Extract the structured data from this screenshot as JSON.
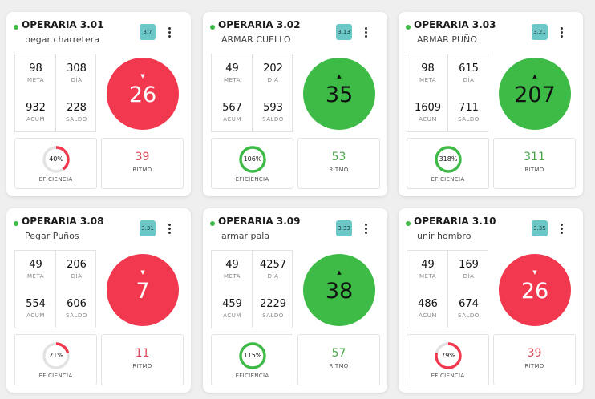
{
  "colors": {
    "ok": "#3dbb46",
    "bad": "#f2384f",
    "ok_text": "#47a447",
    "bad_text": "#d84a5c",
    "badge_bg": "#6cc7c7",
    "ring_track": "#e2e2e2"
  },
  "cards": [
    {
      "title": "OPERARIA 3.01",
      "task": "pegar charretera",
      "badge": "3.7",
      "meta": "98",
      "meta_label": "META",
      "dia": "308",
      "dia_label": "DÍA",
      "acum": "932",
      "acum_label": "ACUM",
      "saldo": "228",
      "saldo_label": "SALDO",
      "value": "26",
      "trend": "down",
      "arrow": "▼",
      "efficiency": "40%",
      "efficiency_fraction": 0.4,
      "efficiency_label": "EFICIENCIA",
      "ritmo": "39",
      "ritmo_label": "RITMO"
    },
    {
      "title": "OPERARIA 3.02",
      "task": "ARMAR CUELLO",
      "badge": "3.13",
      "meta": "49",
      "meta_label": "META",
      "dia": "202",
      "dia_label": "DÍA",
      "acum": "567",
      "acum_label": "ACUM",
      "saldo": "593",
      "saldo_label": "SALDO",
      "value": "35",
      "trend": "up",
      "arrow": "▲",
      "efficiency": "106%",
      "efficiency_fraction": 1.0,
      "efficiency_label": "EFICIENCIA",
      "ritmo": "53",
      "ritmo_label": "RITMO"
    },
    {
      "title": "OPERARIA 3.03",
      "task": "ARMAR PUÑO",
      "badge": "3.21",
      "meta": "98",
      "meta_label": "META",
      "dia": "615",
      "dia_label": "DÍA",
      "acum": "1609",
      "acum_label": "ACUM",
      "saldo": "711",
      "saldo_label": "SALDO",
      "value": "207",
      "trend": "up",
      "arrow": "▲",
      "efficiency": "318%",
      "efficiency_fraction": 1.0,
      "efficiency_label": "EFICIENCIA",
      "ritmo": "311",
      "ritmo_label": "RITMO"
    },
    {
      "title": "OPERARIA 3.08",
      "task": "Pegar Puños",
      "badge": "3.31",
      "meta": "49",
      "meta_label": "META",
      "dia": "206",
      "dia_label": "DÍA",
      "acum": "554",
      "acum_label": "ACUM",
      "saldo": "606",
      "saldo_label": "SALDO",
      "value": "7",
      "trend": "down",
      "arrow": "▼",
      "efficiency": "21%",
      "efficiency_fraction": 0.21,
      "efficiency_label": "EFICIENCIA",
      "ritmo": "11",
      "ritmo_label": "RITMO"
    },
    {
      "title": "OPERARIA 3.09",
      "task": "armar pala",
      "badge": "3.33",
      "meta": "49",
      "meta_label": "META",
      "dia": "4257",
      "dia_label": "DÍA",
      "acum": "459",
      "acum_label": "ACUM",
      "saldo": "2229",
      "saldo_label": "SALDO",
      "value": "38",
      "trend": "up",
      "arrow": "▲",
      "efficiency": "115%",
      "efficiency_fraction": 1.0,
      "efficiency_label": "EFICIENCIA",
      "ritmo": "57",
      "ritmo_label": "RITMO"
    },
    {
      "title": "OPERARIA 3.10",
      "task": "unir hombro",
      "badge": "3.35",
      "meta": "49",
      "meta_label": "META",
      "dia": "169",
      "dia_label": "DÍA",
      "acum": "486",
      "acum_label": "ACUM",
      "saldo": "674",
      "saldo_label": "SALDO",
      "value": "26",
      "trend": "down",
      "arrow": "▼",
      "efficiency": "79%",
      "efficiency_fraction": 0.79,
      "efficiency_label": "EFICIENCIA",
      "ritmo": "39",
      "ritmo_label": "RITMO"
    }
  ]
}
